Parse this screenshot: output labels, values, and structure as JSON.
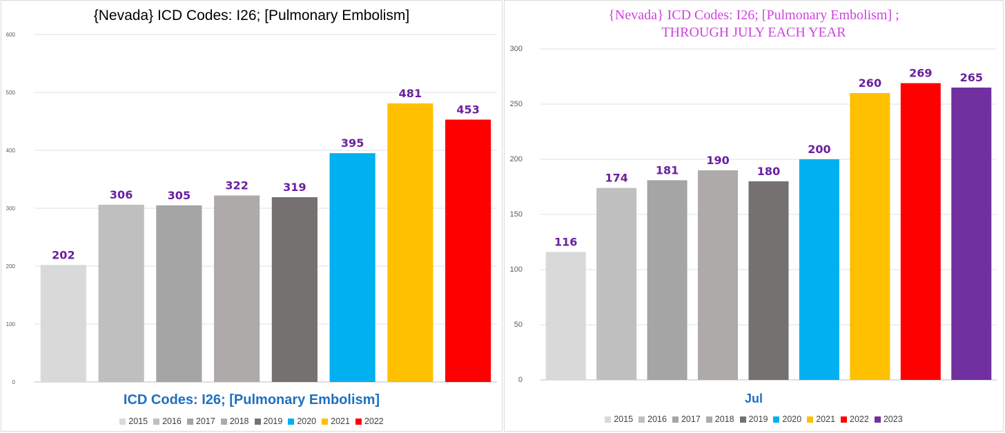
{
  "chart_data": [
    {
      "type": "bar",
      "title": "{Nevada}  ICD Codes: I26;  [Pulmonary Embolism]",
      "xlabel": "ICD Codes: I26;  [Pulmonary Embolism]",
      "ylabel": "",
      "ylim": [
        0,
        600
      ],
      "yticks": [
        "0",
        "100",
        "200",
        "300",
        "400",
        "500",
        "600"
      ],
      "grid": true,
      "legend_position": "bottom",
      "categories": [
        "2015",
        "2016",
        "2017",
        "2018",
        "2019",
        "2020",
        "2021",
        "2022"
      ],
      "values": [
        202,
        306,
        305,
        322,
        319,
        395,
        481,
        453
      ],
      "data_labels": [
        "202",
        "306",
        "305",
        "322",
        "319",
        "395",
        "481",
        "453"
      ],
      "colors": [
        "#d9d9d9",
        "#bfbfbf",
        "#a5a5a5",
        "#aeaaaa",
        "#767171",
        "#00b0f0",
        "#ffc000",
        "#ff0000"
      ]
    },
    {
      "type": "bar",
      "title_lines": [
        "{Nevada}   ICD Codes: I26;  [Pulmonary  Embolism] ;",
        "THROUGH JULY EACH YEAR"
      ],
      "xlabel": "Jul",
      "ylabel": "",
      "ylim": [
        0,
        300
      ],
      "yticks": [
        "0",
        "50",
        "100",
        "150",
        "200",
        "250",
        "300"
      ],
      "grid": true,
      "legend_position": "bottom",
      "categories": [
        "2015",
        "2016",
        "2017",
        "2018",
        "2019",
        "2020",
        "2021",
        "2022",
        "2023"
      ],
      "values": [
        116,
        174,
        181,
        190,
        180,
        200,
        260,
        269,
        265
      ],
      "data_labels": [
        "116",
        "174",
        "181",
        "190",
        "180",
        "200",
        "260",
        "269",
        "265"
      ],
      "colors": [
        "#d9d9d9",
        "#bfbfbf",
        "#a5a5a5",
        "#aeaaaa",
        "#767171",
        "#00b0f0",
        "#ffc000",
        "#ff0000",
        "#7030a0"
      ]
    }
  ]
}
